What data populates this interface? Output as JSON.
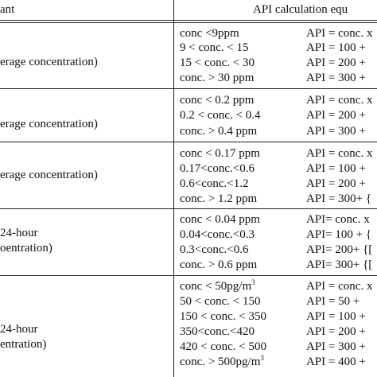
{
  "header": {
    "pollutant": "ant",
    "equation": "API calculation equ"
  },
  "groups": [
    {
      "labels": [
        "erage concentration)"
      ],
      "rows": [
        {
          "cond": "conc <9ppm",
          "api": "API =  conc. x"
        },
        {
          "cond": "9 < conc. < 15",
          "api": "API = 100 +"
        },
        {
          "cond": "15 < conc. < 30",
          "api": "API = 200 +"
        },
        {
          "cond": "conc. > 30 ppm",
          "api": "API = 300 +"
        }
      ]
    },
    {
      "labels": [
        "erage concentration)"
      ],
      "rows": [
        {
          "cond": "conc < 0.2 ppm",
          "api": "API = conc. x"
        },
        {
          "cond": "0.2 < conc. < 0.4",
          "api": "API = 200 +"
        },
        {
          "cond": "conc. > 0.4 ppm",
          "api": "API = 300 +"
        }
      ]
    },
    {
      "labels": [
        "erage concentration)"
      ],
      "rows": [
        {
          "cond": "conc < 0.17 ppm",
          "api": "API = conc. x"
        },
        {
          "cond": "0.17<conc.<0.6",
          "api": "API = 100 +"
        },
        {
          "cond": "0.6<conc.<1.2",
          "api": "API = 200 +"
        },
        {
          "cond": "conc. > 1.2 ppm",
          "api": "API = 300+  {"
        }
      ]
    },
    {
      "labels": [
        "24-hour",
        "oentration)"
      ],
      "rows": [
        {
          "cond": "conc < 0.04 ppm",
          "api": "API= conc. x"
        },
        {
          "cond": "0.04<conc.<0.3",
          "api": "API= 100 + {"
        },
        {
          "cond": "0.3<conc.<0.6",
          "api": "API= 200+ {["
        },
        {
          "cond": "conc. > 0.6 ppm",
          "api": "API= 300+ {["
        }
      ]
    },
    {
      "labels": [
        "24-hour",
        "entration)"
      ],
      "rows": [
        {
          "cond": "conc < 50pg/m",
          "cond_sup": "3",
          "api": "API = conc. x"
        },
        {
          "cond": "50 < conc. < 150",
          "api": "API = 50 +"
        },
        {
          "cond": "150 < conc. < 350",
          "api": "API = 100 +"
        },
        {
          "cond": "350<conc.<420",
          "api": "API = 200 +"
        },
        {
          "cond": "420 < conc. < 500",
          "api": "API = 300 +"
        },
        {
          "cond": "conc. > 500pg/m",
          "cond_sup": "3",
          "api": "API = 400 +"
        }
      ]
    }
  ]
}
